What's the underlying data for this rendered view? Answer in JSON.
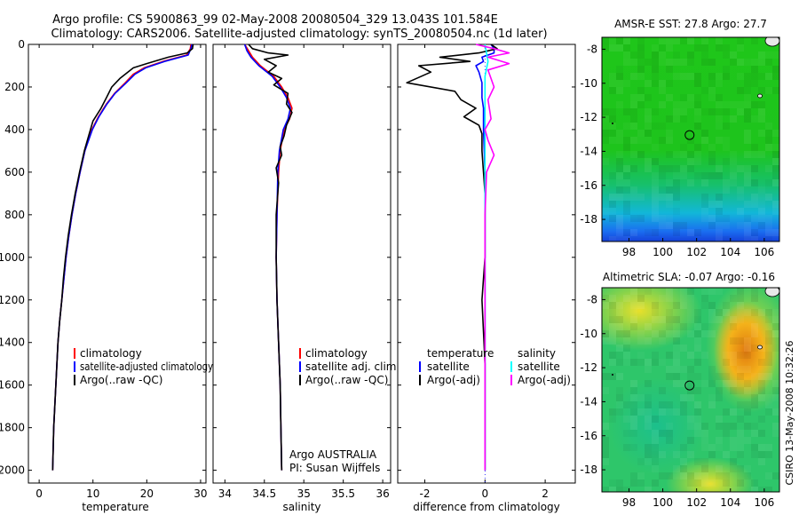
{
  "header": {
    "title_line1": "Argo profile: CS 5900863_99 02-May-2008 20080504_329 13.043S 101.584E",
    "title_line2": "Climatology: CARS2006. Satellite-adjusted climatology: synTS_20080504.nc (1d later)"
  },
  "colors": {
    "climatology": "#ff0000",
    "satellite": "#0000ff",
    "argo": "#000000",
    "salinity_satellite": "#00ffff",
    "salinity_argo": "#ff00ff"
  },
  "chart_data": [
    {
      "type": "line",
      "id": "temperature",
      "xlabel": "temperature",
      "ylabel": "",
      "xlim": [
        -2,
        31
      ],
      "ylim": [
        2060,
        0
      ],
      "xticks": [
        0,
        10,
        20,
        30
      ],
      "yticks": [
        0,
        200,
        400,
        600,
        800,
        1000,
        1200,
        1400,
        1600,
        1800,
        2000
      ],
      "grid": false,
      "legend": {
        "placement": "lower-right",
        "entries": [
          "climatology",
          "satellite-adjusted climatology",
          "Argo(..raw -QC)"
        ]
      },
      "series": [
        {
          "name": "climatology",
          "color": "#ff0000",
          "points": [
            [
              28.2,
              0
            ],
            [
              28.1,
              20
            ],
            [
              27.4,
              50
            ],
            [
              23,
              80
            ],
            [
              19.5,
              110
            ],
            [
              17.5,
              140
            ],
            [
              16,
              180
            ],
            [
              14,
              230
            ],
            [
              12.5,
              280
            ],
            [
              11,
              340
            ],
            [
              9.8,
              400
            ],
            [
              8.5,
              500
            ],
            [
              7.6,
              600
            ],
            [
              6.8,
              700
            ],
            [
              6.1,
              800
            ],
            [
              5.5,
              900
            ],
            [
              5.0,
              1000
            ],
            [
              4.6,
              1100
            ],
            [
              4.2,
              1200
            ],
            [
              3.8,
              1300
            ],
            [
              3.5,
              1400
            ],
            [
              3.3,
              1500
            ],
            [
              3.1,
              1600
            ],
            [
              2.9,
              1700
            ],
            [
              2.7,
              1800
            ],
            [
              2.6,
              1900
            ],
            [
              2.5,
              2000
            ]
          ]
        },
        {
          "name": "satellite-adjusted climatology",
          "color": "#0000ff",
          "points": [
            [
              28.4,
              0
            ],
            [
              28.2,
              20
            ],
            [
              27.7,
              50
            ],
            [
              23.3,
              80
            ],
            [
              19.8,
              110
            ],
            [
              17.8,
              140
            ],
            [
              16.2,
              180
            ],
            [
              14.1,
              230
            ],
            [
              12.6,
              280
            ],
            [
              11.1,
              340
            ],
            [
              9.9,
              400
            ],
            [
              8.5,
              500
            ],
            [
              7.6,
              600
            ],
            [
              6.8,
              700
            ],
            [
              6.1,
              800
            ],
            [
              5.5,
              900
            ],
            [
              5.0,
              1000
            ],
            [
              4.6,
              1100
            ],
            [
              4.2,
              1200
            ],
            [
              3.8,
              1300
            ],
            [
              3.5,
              1400
            ],
            [
              3.3,
              1500
            ],
            [
              3.1,
              1600
            ],
            [
              2.9,
              1700
            ],
            [
              2.7,
              1800
            ],
            [
              2.6,
              1900
            ],
            [
              2.5,
              2000
            ]
          ]
        },
        {
          "name": "Argo(..raw -QC)",
          "color": "#000000",
          "points": [
            [
              28.6,
              0
            ],
            [
              28.5,
              20
            ],
            [
              27.5,
              40
            ],
            [
              24,
              60
            ],
            [
              20,
              90
            ],
            [
              17.5,
              110
            ],
            [
              15,
              160
            ],
            [
              13.5,
              200
            ],
            [
              12.5,
              250
            ],
            [
              11.5,
              300
            ],
            [
              10.0,
              360
            ],
            [
              9.3,
              420
            ],
            [
              8.4,
              500
            ],
            [
              7.5,
              600
            ],
            [
              6.7,
              700
            ],
            [
              6.0,
              800
            ],
            [
              5.4,
              900
            ],
            [
              4.9,
              1000
            ],
            [
              4.5,
              1100
            ],
            [
              4.2,
              1200
            ],
            [
              3.8,
              1300
            ],
            [
              3.5,
              1400
            ],
            [
              3.3,
              1500
            ],
            [
              3.1,
              1600
            ],
            [
              2.9,
              1700
            ],
            [
              2.7,
              1800
            ],
            [
              2.6,
              1900
            ],
            [
              2.5,
              2000
            ]
          ]
        }
      ]
    },
    {
      "type": "line",
      "id": "salinity",
      "xlabel": "salinity",
      "ylabel": "",
      "xlim": [
        33.85,
        36.1
      ],
      "ylim": [
        2060,
        0
      ],
      "xticks": [
        34,
        34.5,
        35,
        35.5,
        36
      ],
      "grid": false,
      "legend": {
        "placement": "lower-right",
        "entries": [
          "climatology",
          "satellite adj. clim.",
          "Argo(..raw -QC)"
        ]
      },
      "annotations": [
        "Argo AUSTRALIA",
        "PI: Susan Wijffels"
      ],
      "series": [
        {
          "name": "climatology",
          "color": "#ff0000",
          "points": [
            [
              34.25,
              0
            ],
            [
              34.3,
              30
            ],
            [
              34.35,
              60
            ],
            [
              34.45,
              100
            ],
            [
              34.62,
              150
            ],
            [
              34.72,
              200
            ],
            [
              34.8,
              250
            ],
            [
              34.85,
              300
            ],
            [
              34.82,
              350
            ],
            [
              34.75,
              400
            ],
            [
              34.7,
              500
            ],
            [
              34.68,
              600
            ],
            [
              34.66,
              800
            ],
            [
              34.65,
              1000
            ],
            [
              34.66,
              1200
            ],
            [
              34.68,
              1400
            ],
            [
              34.7,
              1600
            ],
            [
              34.71,
              1800
            ],
            [
              34.72,
              2000
            ]
          ]
        },
        {
          "name": "satellite adj. clim.",
          "color": "#0000ff",
          "points": [
            [
              34.25,
              0
            ],
            [
              34.28,
              30
            ],
            [
              34.33,
              60
            ],
            [
              34.43,
              100
            ],
            [
              34.6,
              150
            ],
            [
              34.7,
              200
            ],
            [
              34.78,
              250
            ],
            [
              34.83,
              300
            ],
            [
              34.8,
              350
            ],
            [
              34.74,
              400
            ],
            [
              34.69,
              500
            ],
            [
              34.67,
              600
            ],
            [
              34.66,
              800
            ],
            [
              34.65,
              1000
            ],
            [
              34.66,
              1200
            ],
            [
              34.68,
              1400
            ],
            [
              34.7,
              1600
            ],
            [
              34.71,
              1800
            ],
            [
              34.72,
              2000
            ]
          ]
        },
        {
          "name": "Argo(..raw -QC)",
          "color": "#000000",
          "points": [
            [
              34.3,
              0
            ],
            [
              34.35,
              20
            ],
            [
              34.55,
              40
            ],
            [
              34.8,
              50
            ],
            [
              34.5,
              70
            ],
            [
              34.65,
              100
            ],
            [
              34.55,
              130
            ],
            [
              34.72,
              160
            ],
            [
              34.62,
              190
            ],
            [
              34.8,
              230
            ],
            [
              34.78,
              280
            ],
            [
              34.85,
              320
            ],
            [
              34.78,
              380
            ],
            [
              34.75,
              430
            ],
            [
              34.7,
              480
            ],
            [
              34.72,
              520
            ],
            [
              34.65,
              580
            ],
            [
              34.68,
              650
            ],
            [
              34.65,
              800
            ],
            [
              34.65,
              1000
            ],
            [
              34.66,
              1200
            ],
            [
              34.68,
              1400
            ],
            [
              34.7,
              1600
            ],
            [
              34.71,
              1800
            ],
            [
              34.72,
              2000
            ]
          ]
        }
      ]
    },
    {
      "type": "line",
      "id": "difference",
      "xlabel": "difference from climatology",
      "ylabel": "",
      "xlim": [
        -2.9,
        3
      ],
      "ylim": [
        2060,
        0
      ],
      "xticks": [
        -2,
        0,
        2
      ],
      "grid": false,
      "legend": {
        "placement": "lower",
        "entries": [
          "temperature",
          "satellite",
          "Argo(-adj)",
          "salinity",
          "satellite",
          "Argo(-adj)"
        ]
      },
      "series": [
        {
          "name": "temperature satellite",
          "color": "#0000ff",
          "points": [
            [
              0.2,
              0
            ],
            [
              0.3,
              20
            ],
            [
              0.3,
              40
            ],
            [
              -0.1,
              60
            ],
            [
              -0.05,
              80
            ],
            [
              -0.3,
              100
            ],
            [
              -0.2,
              130
            ],
            [
              -0.1,
              180
            ],
            [
              -0.1,
              250
            ],
            [
              -0.05,
              300
            ],
            [
              -0.05,
              400
            ],
            [
              0,
              600
            ],
            [
              0,
              1000
            ],
            [
              0,
              1500
            ],
            [
              0,
              2000
            ]
          ]
        },
        {
          "name": "temperature Argo(-adj)",
          "color": "#000000",
          "points": [
            [
              0.2,
              0
            ],
            [
              0.4,
              20
            ],
            [
              -0.2,
              40
            ],
            [
              -1.5,
              60
            ],
            [
              -0.5,
              80
            ],
            [
              -2.2,
              100
            ],
            [
              -1.8,
              130
            ],
            [
              -2.6,
              180
            ],
            [
              -1.0,
              220
            ],
            [
              -0.8,
              260
            ],
            [
              -0.3,
              300
            ],
            [
              -0.7,
              340
            ],
            [
              -0.2,
              380
            ],
            [
              -0.1,
              420
            ],
            [
              -0.1,
              500
            ],
            [
              0,
              700
            ],
            [
              0,
              1000
            ],
            [
              -0.1,
              1200
            ],
            [
              0,
              1500
            ],
            [
              0,
              2000
            ]
          ]
        },
        {
          "name": "salinity satellite",
          "color": "#00ffff",
          "points": [
            [
              0,
              0
            ],
            [
              0.05,
              40
            ],
            [
              0.1,
              80
            ],
            [
              0,
              150
            ],
            [
              0,
              400
            ],
            [
              0,
              1000
            ],
            [
              0,
              1500
            ],
            [
              0,
              2000
            ]
          ]
        },
        {
          "name": "salinity Argo(-adj)",
          "color": "#ff00ff",
          "points": [
            [
              -0.3,
              0
            ],
            [
              0.3,
              20
            ],
            [
              0.8,
              40
            ],
            [
              0.1,
              60
            ],
            [
              0.8,
              90
            ],
            [
              0.1,
              120
            ],
            [
              0.3,
              200
            ],
            [
              0.1,
              260
            ],
            [
              0.2,
              350
            ],
            [
              0,
              400
            ],
            [
              0.1,
              450
            ],
            [
              0.3,
              520
            ],
            [
              0.05,
              600
            ],
            [
              0,
              800
            ],
            [
              0,
              1000
            ],
            [
              0,
              1200
            ],
            [
              0,
              1500
            ],
            [
              0,
              2000
            ]
          ]
        }
      ]
    },
    {
      "type": "heatmap",
      "id": "sst-map",
      "title": "AMSR-E SST: 27.8  Argo: 27.7",
      "xlim": [
        96.4,
        106.9
      ],
      "ylim": [
        -19.3,
        -7.3
      ],
      "xticks": [
        98,
        100,
        102,
        104,
        106
      ],
      "yticks": [
        -8,
        -10,
        -12,
        -14,
        -16,
        -18
      ],
      "marker": {
        "lon": 101.584,
        "lat": -13.043
      }
    },
    {
      "type": "heatmap",
      "id": "sla-map",
      "title": "Altimetric SLA: -0.07  Argo: -0.16",
      "xlim": [
        96.4,
        106.9
      ],
      "ylim": [
        -19.3,
        -7.3
      ],
      "xticks": [
        98,
        100,
        102,
        104,
        106
      ],
      "yticks": [
        -8,
        -10,
        -12,
        -14,
        -16,
        -18
      ],
      "marker": {
        "lon": 101.584,
        "lat": -13.043
      }
    }
  ],
  "credit": "CSIRO 13-May-2008 10:32:26"
}
